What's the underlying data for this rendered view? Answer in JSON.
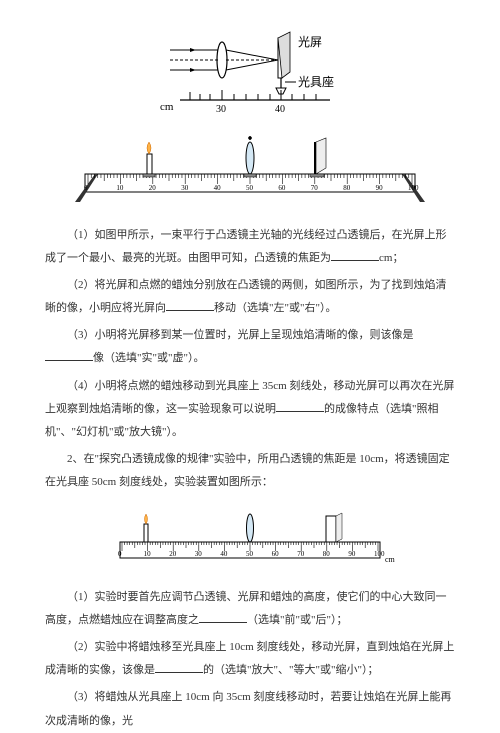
{
  "fig1": {
    "label_screen": "光屏",
    "label_bench": "光具座",
    "unit": "cm",
    "ticks_major": [
      "30",
      "40"
    ]
  },
  "fig2": {
    "ticks": [
      "0",
      "10",
      "20",
      "30",
      "40",
      "50",
      "60",
      "70",
      "80",
      "90",
      "100"
    ]
  },
  "q1": {
    "p1_a": "（1）如图甲所示，一束平行于凸透镜主光轴的光线经过凸透镜后，在光屏上形成了一个最小、最亮的光斑。由图甲可知，凸透镜的焦距为",
    "p1_b": "cm；",
    "p2_a": "（2）将光屏和点燃的蜡烛分别放在凸透镜的两侧，如图所示，为了找到烛焰清晰的像，小明应将光屏向",
    "p2_b": "移动（选填\"左\"或\"右\"）。",
    "p3_a": "（3）小明将光屏移到某一位置时，光屏上呈现烛焰清晰的像，则该像是",
    "p3_b": "像（选填\"实\"或\"虚\"）。",
    "p4_a": "（4）小明将点燃的蜡烛移动到光具座上 35cm 刻线处，移动光屏可以再次在光屏上观察到烛焰清晰的像，这一实验现象可以说明",
    "p4_b": "的成像特点（选填\"照相机\"、\"幻灯机\"或\"放大镜\"）。"
  },
  "q2": {
    "intro": "2、在\"探究凸透镜成像的规律\"实验中，所用凸透镜的焦距是 10cm，将透镜固定在光具座 50cm 刻度线处，实验装置如图所示：",
    "p1_a": "（1）实验时要首先应调节凸透镜、光屏和蜡烛的高度，使它们的中心大致同一高度，点燃蜡烛应在调整高度之",
    "p1_b": "（选填\"前\"或\"后\"）；",
    "p2_a": "（2）实验中将蜡烛移至光具座上 10cm 刻度线处，移动光屏，直到烛焰在光屏上成清晰的实像，该像是",
    "p2_b": "的（选填\"放大\"、\"等大\"或\"缩小\"）；",
    "p3": "（3）将蜡烛从光具座上 10cm 向 35cm 刻度线移动时，若要让烛焰在光屏上能再次成清晰的像，光"
  },
  "fig3": {
    "ticks": [
      "0",
      "10",
      "20",
      "30",
      "40",
      "50",
      "60",
      "70",
      "80",
      "90",
      "100"
    ],
    "unit": "cm"
  }
}
